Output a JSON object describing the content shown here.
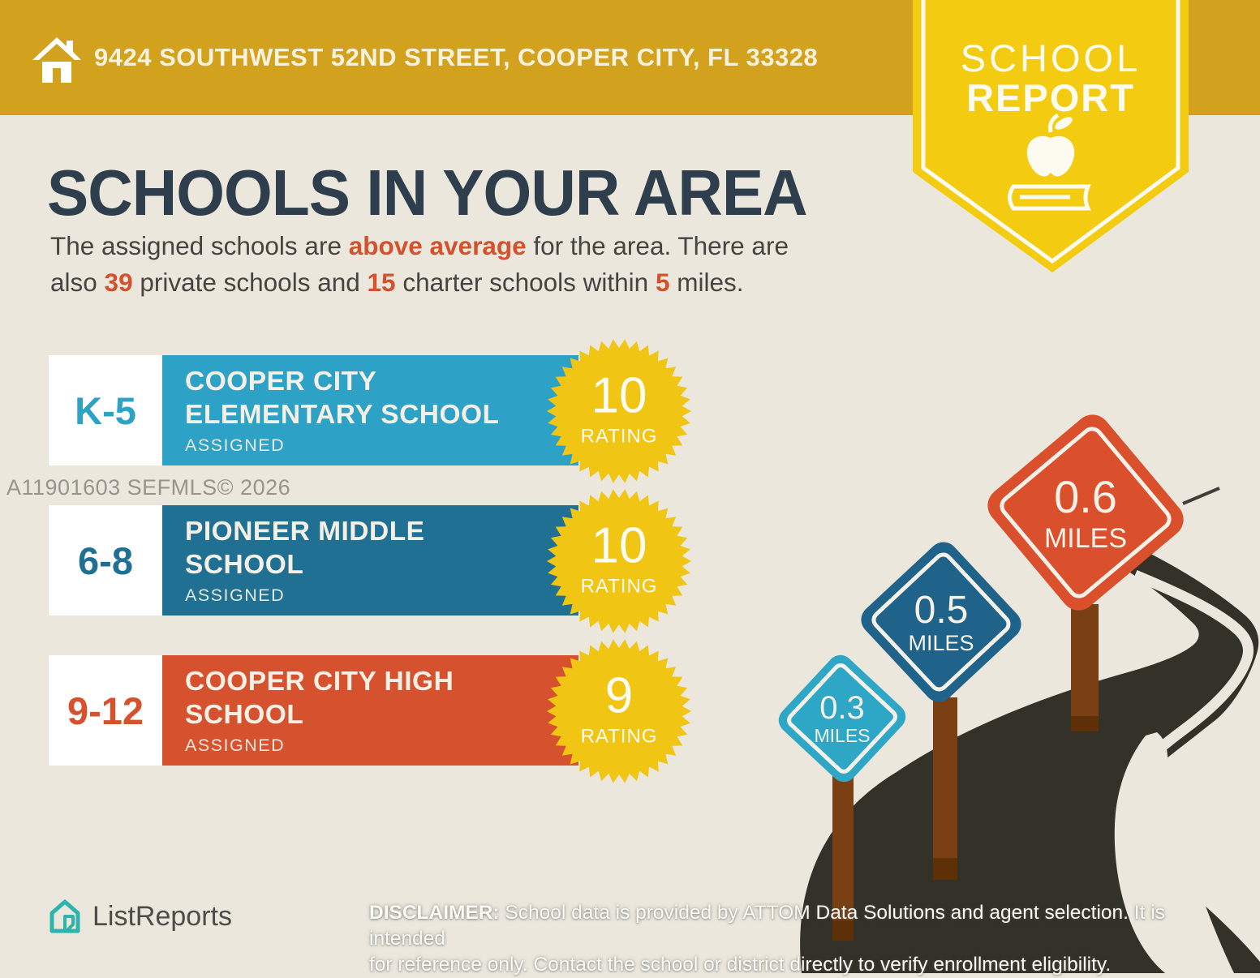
{
  "header": {
    "address": "9424 SOUTHWEST 52ND STREET, COOPER CITY, FL 33328"
  },
  "ribbon": {
    "line1": "SCHOOL",
    "line2": "REPORT"
  },
  "title": "SCHOOLS IN YOUR AREA",
  "subtitle_segments": [
    {
      "text": "The assigned schools are ",
      "highlight": false
    },
    {
      "text": "above average",
      "highlight": true
    },
    {
      "text": " for the area. There are\nalso ",
      "highlight": false
    },
    {
      "text": "39",
      "highlight": true
    },
    {
      "text": " private schools and ",
      "highlight": false
    },
    {
      "text": "15",
      "highlight": true
    },
    {
      "text": " charter schools within ",
      "highlight": false
    },
    {
      "text": "5",
      "highlight": true
    },
    {
      "text": " miles.",
      "highlight": false
    }
  ],
  "watermark": "A11901603  SEFMLS© 2026",
  "schools": [
    {
      "grades": "K-5",
      "name_line1": "COOPER CITY",
      "name_line2": "ELEMENTARY SCHOOL",
      "status": "ASSIGNED",
      "rating": "10",
      "rating_label": "RATING",
      "color": "#2DA2C6"
    },
    {
      "grades": "6-8",
      "name_line1": "PIONEER MIDDLE",
      "name_line2": "SCHOOL",
      "status": "ASSIGNED",
      "rating": "10",
      "rating_label": "RATING",
      "color": "#1F7092"
    },
    {
      "grades": "9-12",
      "name_line1": "COOPER CITY HIGH",
      "name_line2": "SCHOOL",
      "status": "ASSIGNED",
      "rating": "9",
      "rating_label": "RATING",
      "color": "#D6512E"
    }
  ],
  "signs": [
    {
      "value": "0.3",
      "unit": "MILES",
      "color": "#2EA7C6"
    },
    {
      "value": "0.5",
      "unit": "MILES",
      "color": "#20638A"
    },
    {
      "value": "0.6",
      "unit": "MILES",
      "color": "#DA4F2C"
    }
  ],
  "footer": {
    "brand": "ListReports",
    "disclaimer_label": "DISCLAIMER:",
    "disclaimer_line1": " School data is provided by ATTOM Data Solutions and agent selection. It is intended",
    "disclaimer_line2": "for reference only. Contact the school or district directly to verify enrollment eligibility."
  },
  "colors": {
    "header_gold": "#D2A11E",
    "ribbon_yellow": "#F3CB11",
    "star_yellow": "#F0C513",
    "road": "#343128",
    "background": "#EBE7DD",
    "navy": "#2F3E4D",
    "orange": "#D4512D"
  }
}
